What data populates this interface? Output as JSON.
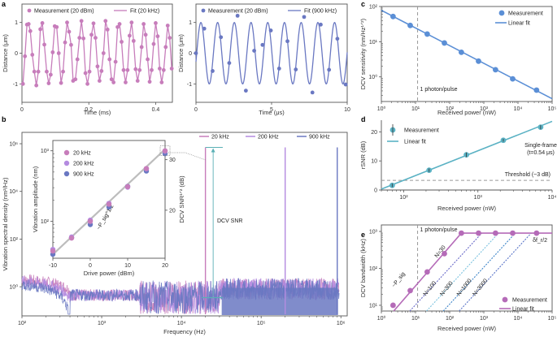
{
  "colors": {
    "pink": "#c77dbb",
    "lavender": "#b48be0",
    "blue": "#6a78c2",
    "steel": "#5b8fd6",
    "teal": "#5bb2c4",
    "tealdark": "#4a9fa8",
    "purple": "#b56bb8",
    "gray": "#999999",
    "dcvsnr": "#5ab0b5"
  },
  "chart_data": [
    {
      "id": "a1",
      "panel": "a",
      "type": "line",
      "xlabel": "Time (ms)",
      "ylabel": "Distance (μm)",
      "xlim": [
        0,
        0.45
      ],
      "ylim": [
        -1.6,
        1.6
      ],
      "xticks": [
        0,
        0.2,
        0.4
      ],
      "xtick_labels": [
        "0",
        "0.2",
        "0.4"
      ],
      "yticks": [
        -1,
        0,
        1
      ],
      "ytick_labels": [
        "-1",
        "0",
        "1"
      ],
      "legend": [
        "Measurement (20 dBm)",
        "Fit (20 kHz)"
      ],
      "fit": {
        "frequency_khz": 20,
        "amplitude": 1.0
      },
      "measurement_x": [
        0.003,
        0.009,
        0.015,
        0.02,
        0.025,
        0.031,
        0.037,
        0.043,
        0.049,
        0.055,
        0.061,
        0.067,
        0.074,
        0.08,
        0.086,
        0.092,
        0.098,
        0.104,
        0.11,
        0.117,
        0.123,
        0.129,
        0.135,
        0.141,
        0.147,
        0.153,
        0.16,
        0.166,
        0.172,
        0.178,
        0.184,
        0.19,
        0.196,
        0.202,
        0.208,
        0.214,
        0.22,
        0.226,
        0.232,
        0.238,
        0.244,
        0.25,
        0.256,
        0.262,
        0.268,
        0.274,
        0.28,
        0.286,
        0.292,
        0.298,
        0.304,
        0.31,
        0.316,
        0.322,
        0.328,
        0.334,
        0.34,
        0.346,
        0.352,
        0.358,
        0.364,
        0.37,
        0.376,
        0.382,
        0.388,
        0.394,
        0.4,
        0.406,
        0.412,
        0.418,
        0.424,
        0.43,
        0.436,
        0.442,
        0.448
      ],
      "measurement_y": [
        -1.0,
        -0.1,
        0.93,
        0.95,
        0.72,
        -0.05,
        -0.6,
        -1.05,
        -0.6,
        0.78,
        0.98,
        0.28,
        -0.6,
        -0.98,
        -0.7,
        0.03,
        0.88,
        0.85,
        0.0,
        -0.97,
        -0.6,
        0.35,
        1.0,
        0.7,
        0.27,
        -0.9,
        -0.85,
        -0.2,
        0.5,
        1.05,
        0.48,
        -0.65,
        -1.0,
        -0.6,
        0.6,
        0.97,
        0.5,
        -0.43,
        -0.9,
        -0.58,
        0.0,
        1.05,
        0.77,
        -0.2,
        -0.85,
        -0.95,
        -0.28,
        0.85,
        0.95,
        0.37,
        -0.55,
        -0.95,
        -0.55,
        0.57,
        1.0,
        0.4,
        -0.52,
        -0.9,
        -0.55,
        0.2,
        0.95,
        0.6,
        -0.2,
        -0.93,
        -0.55,
        0.3,
        0.98,
        0.55,
        -0.5,
        -0.95,
        -0.55,
        0.2,
        0.9,
        0.5,
        -0.5
      ]
    },
    {
      "id": "a2",
      "panel": "a",
      "type": "line",
      "xlabel": "Time (μs)",
      "ylabel": "Distance (μm)",
      "xlim": [
        0,
        10
      ],
      "ylim": [
        -1.6,
        1.6
      ],
      "xticks": [
        0,
        5,
        10
      ],
      "xtick_labels": [
        "0",
        "5",
        "10"
      ],
      "yticks": [
        -1,
        0,
        1
      ],
      "ytick_labels": [
        "-1",
        "0",
        "1"
      ],
      "legend": [
        "Measurement (20 dBm)",
        "Fit (900 kHz)"
      ],
      "fit": {
        "frequency_khz": 900,
        "amplitude": 1.0
      },
      "measurement_x": [
        0.0,
        0.55,
        1.1,
        1.65,
        2.2,
        2.75,
        3.3,
        3.85,
        4.4,
        4.95,
        5.5,
        6.05,
        6.6,
        7.15,
        7.7,
        8.25,
        8.8,
        9.35,
        9.9
      ],
      "measurement_y": [
        0.0,
        0.8,
        -0.58,
        0.52,
        -0.32,
        1.22,
        -1.22,
        0.08,
        0.27,
        0.74,
        -0.5,
        0.39,
        -0.53,
        1.18,
        -1.28,
        0.93,
        -0.54,
        0.47,
        -1.02
      ]
    },
    {
      "id": "b",
      "panel": "b",
      "type": "line",
      "xlabel": "Frequency (Hz)",
      "ylabel": "Vibration spectral density (nm²/Hz)",
      "xscale": "log",
      "yscale": "log",
      "xlim": [
        100,
        1200000
      ],
      "ylim": [
        0.06,
        3000000
      ],
      "xtick_labels": [
        "10²",
        "10³",
        "10⁴",
        "10⁵",
        "10⁶"
      ],
      "xticks": [
        100,
        1000,
        10000,
        100000,
        1000000
      ],
      "ytick_labels": [
        "10⁰",
        "10²",
        "10⁴",
        "10⁶"
      ],
      "yticks": [
        1,
        100,
        10000,
        1000000
      ],
      "legend": [
        "20 kHz",
        "200 kHz",
        "900 kHz"
      ],
      "peaks_hz": [
        20000,
        200000,
        900000
      ],
      "peak_level": 700000,
      "noise_floor": 0.3,
      "annotation": "DCV SNR"
    },
    {
      "id": "b_inset",
      "panel": "b-inset",
      "type": "scatter",
      "xlabel": "Drive power (dBm)",
      "ylabel": "Vibration amplitude (nm)",
      "y2label": "DCV SNR¹ᐟ² (dB)",
      "yscale": "log",
      "xlim": [
        -10,
        20
      ],
      "ylim": [
        30,
        1400
      ],
      "xticks": [
        -10,
        0,
        10,
        20
      ],
      "xtick_labels": [
        "-10",
        "0",
        "10",
        "20"
      ],
      "yticks": [
        100,
        1000
      ],
      "ytick_labels": [
        "10²",
        "10³"
      ],
      "y2ticks": [
        20,
        30
      ],
      "y2tick_labels": [
        "20",
        "30"
      ],
      "fit_label": "~P_sig^1/2",
      "x": [
        -10,
        -5,
        0,
        5,
        10,
        15,
        20
      ],
      "series": [
        {
          "name": "20 kHz",
          "values": [
            38,
            58,
            100,
            175,
            310,
            560,
            1000
          ]
        },
        {
          "name": "200 kHz",
          "values": [
            40,
            60,
            104,
            180,
            305,
            555,
            990
          ]
        },
        {
          "name": "900 kHz",
          "values": [
            36,
            62,
            95,
            168,
            330,
            545,
            960
          ]
        }
      ]
    },
    {
      "id": "c",
      "panel": "c",
      "type": "scatter",
      "xlabel": "Received power (nW)",
      "ylabel": "DCV sensitivity (nm/Hz¹ᐟ²)",
      "xscale": "log",
      "yscale": "log",
      "xlim": [
        1,
        100000
      ],
      "ylim": [
        0.2,
        100
      ],
      "xticks": [
        1,
        10,
        100,
        1000,
        10000,
        100000
      ],
      "xtick_labels": [
        "10⁰",
        "10¹",
        "10²",
        "10³",
        "10⁴",
        "10⁵"
      ],
      "yticks": [
        1,
        10,
        100
      ],
      "ytick_labels": [
        "10⁰",
        "10¹",
        "10²"
      ],
      "legend": [
        "Measurement",
        "Linear fit"
      ],
      "vline": {
        "x": 11.5,
        "label": "1 photon/pulse"
      },
      "x": [
        2.2,
        7,
        22,
        70,
        220,
        700,
        2200,
        7000,
        35000
      ],
      "values": [
        52,
        29,
        16.5,
        9.2,
        5.0,
        2.8,
        1.6,
        0.88,
        0.42
      ],
      "fit_endpoints": {
        "x": [
          1,
          100000
        ],
        "y": [
          78,
          0.24
        ]
      }
    },
    {
      "id": "d",
      "panel": "d",
      "type": "scatter",
      "xlabel": "Received power (nW)",
      "ylabel": "rSNR (dB)",
      "xscale": "log",
      "xlim": [
        50,
        10000
      ],
      "ylim": [
        0,
        24
      ],
      "xticks": [
        100,
        1000,
        10000
      ],
      "xtick_labels": [
        "10²",
        "10³",
        "10⁴"
      ],
      "yticks": [
        0,
        10,
        20
      ],
      "ytick_labels": [
        "0",
        "10",
        "20"
      ],
      "legend": [
        "Measurement",
        "Linear fit"
      ],
      "hline": {
        "y": 3.3,
        "label": "Threshold (~3 dB)"
      },
      "annotation": [
        "Single-frame",
        "(t=0.54 μs)"
      ],
      "x": [
        70,
        220,
        700,
        2200,
        7000
      ],
      "values": [
        1.6,
        6.8,
        12.1,
        17.1,
        21.6
      ],
      "errors": [
        0.6,
        0.6,
        0.8,
        0.5,
        0.7
      ],
      "fit_endpoints": {
        "x": [
          50,
          10000
        ],
        "y": [
          0.3,
          23.6
        ]
      }
    },
    {
      "id": "e",
      "panel": "e",
      "type": "scatter",
      "xlabel": "Received power (nW)",
      "ylabel": "DCV bandwidth (kHz)",
      "xscale": "log",
      "yscale": "log",
      "xlim": [
        1,
        100000
      ],
      "ylim": [
        7,
        1500
      ],
      "xticks": [
        1,
        10,
        100,
        1000,
        10000,
        100000
      ],
      "xtick_labels": [
        "10⁰",
        "10¹",
        "10²",
        "10³",
        "10⁴",
        "10⁵"
      ],
      "yticks": [
        10,
        100,
        1000
      ],
      "ytick_labels": [
        "10¹",
        "10²",
        "10³"
      ],
      "legend": [
        "Measurement",
        "Linear fit"
      ],
      "vline": {
        "x": 11.5,
        "label": "1 photon/pulse"
      },
      "plateau_label": "δf_r/2",
      "slope_label": "~P_sig",
      "x": [
        2.2,
        7,
        22,
        70,
        220,
        700,
        2200,
        7000,
        35000
      ],
      "values": [
        10,
        25,
        80,
        250,
        900,
        900,
        900,
        900,
        900
      ],
      "fit": [
        {
          "x": 2.3,
          "y": 7
        },
        {
          "x": 220,
          "y": 900
        },
        {
          "x": 100000,
          "y": 900
        }
      ],
      "guide_lines": [
        {
          "label": "N=30",
          "x_at_7": 2.3
        },
        {
          "label": "N=100",
          "x_at_7": 6.8
        },
        {
          "label": "N=300",
          "x_at_7": 21
        },
        {
          "label": "N=1000",
          "x_at_7": 65
        },
        {
          "label": "N=3000",
          "x_at_7": 190
        }
      ]
    }
  ],
  "panel_letters": [
    "a",
    "b",
    "c",
    "d",
    "e"
  ]
}
